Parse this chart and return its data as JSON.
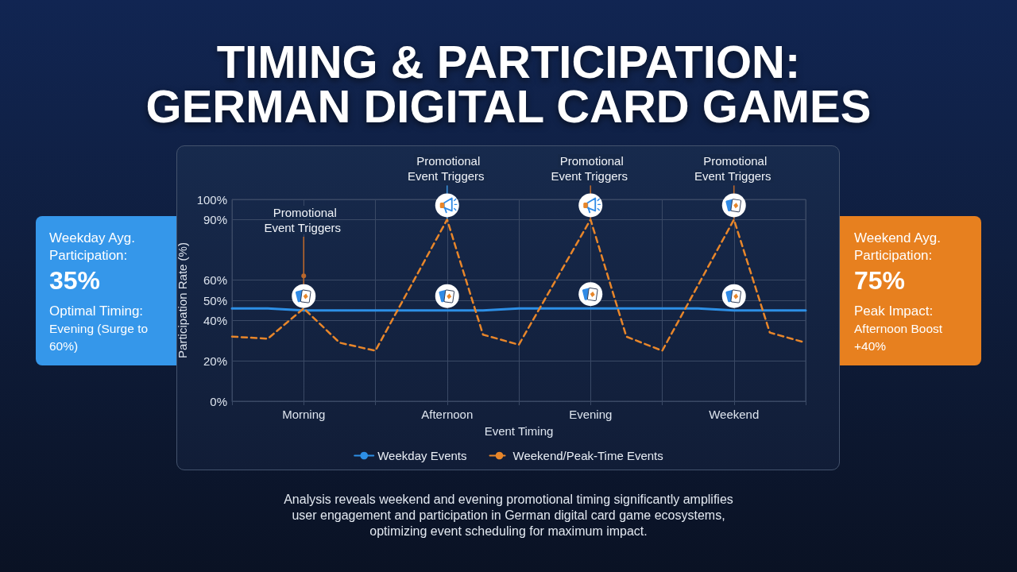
{
  "chart_data": [
    {
      "type": "line",
      "title": "TIMING & PARTICIPATION: GERMAN DIGITAL CARD GAMES",
      "xlabel": "Event Timing",
      "ylabel": "Participation Rate (%)",
      "categories": [
        null,
        null,
        "Morning",
        null,
        null,
        null,
        "Afternoon",
        null,
        null,
        null,
        "Evening",
        null,
        null,
        null,
        "Weekend",
        null,
        null
      ],
      "ylim": [
        0,
        100
      ],
      "yticks": [
        {
          "value": 0,
          "label": "0%"
        },
        {
          "value": 20,
          "label": "20%"
        },
        {
          "value": 40,
          "label": "40%"
        },
        {
          "value": 50,
          "label": "50%"
        },
        {
          "value": 60,
          "label": "60%"
        },
        {
          "value": 90,
          "label": "90%"
        },
        {
          "value": 100,
          "label": "100%"
        }
      ],
      "series": [
        {
          "name": "Weekday Events",
          "color": "#2d8fe6",
          "line_style": "solid",
          "values": [
            46,
            46,
            45,
            45,
            45,
            45,
            45,
            45,
            46,
            46,
            46,
            46,
            46,
            46,
            45,
            45,
            45
          ]
        },
        {
          "name": "Weekend/Peak-Time Events",
          "color": "#e8862a",
          "line_style": "dashed",
          "values": [
            32,
            31,
            46,
            29,
            25,
            null,
            90,
            33,
            28,
            null,
            90,
            32,
            25,
            null,
            90,
            34,
            29
          ]
        }
      ],
      "grid": true,
      "legend": "bottom",
      "marker": "none",
      "annotations": [
        {
          "text": "Promotional Event Triggers",
          "x": "Morning",
          "y": 46
        },
        {
          "text": "Promotional Event Triggers",
          "x": "Afternoon",
          "y": 90
        },
        {
          "text": "Promotional Event Triggers",
          "x": "Evening",
          "y": 90
        },
        {
          "text": "Promotional Event Triggers",
          "x": "Weekend",
          "y": 90
        },
        "Analysis reveals weekend and evening promotional timing significantly amplifies user engagement and participation in German digital card game ecosystems, optimizing event scheduling for maximum impact."
      ]
    },
    {
      "type": "other",
      "title": "Weekday Ayg. Participation:",
      "annotations": [
        "35%",
        "Optimal Timing:",
        "Evening (Surge to 60%)"
      ]
    },
    {
      "type": "other",
      "title": "Weekend Ayg. Participation:",
      "annotations": [
        "75%",
        "Peak Impact:",
        "Afternoon Boost +40%"
      ]
    }
  ]
}
